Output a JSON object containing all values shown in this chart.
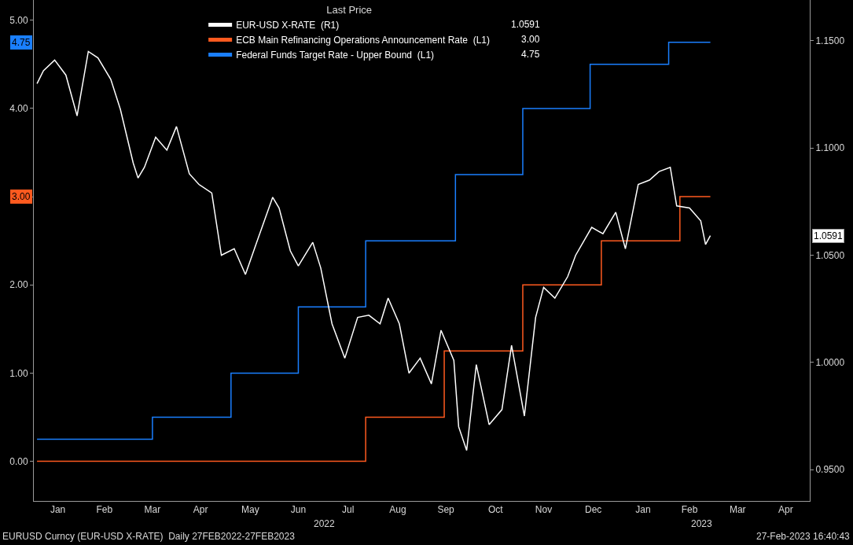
{
  "chart_data": {
    "type": "line",
    "legend_title": "Last Price",
    "legend": "top",
    "series": [
      {
        "name": "EUR-USD X-RATE  (R1)",
        "axis": "y2",
        "color": "#ffffff",
        "x": [
          "2022-01-03",
          "2022-01-07",
          "2022-01-14",
          "2022-01-21",
          "2022-01-28",
          "2022-02-04",
          "2022-02-10",
          "2022-02-18",
          "2022-02-24",
          "2022-03-04",
          "2022-03-07",
          "2022-03-11",
          "2022-03-18",
          "2022-03-25",
          "2022-03-31",
          "2022-04-08",
          "2022-04-14",
          "2022-04-22",
          "2022-04-28",
          "2022-05-06",
          "2022-05-13",
          "2022-05-20",
          "2022-05-30",
          "2022-06-03",
          "2022-06-10",
          "2022-06-15",
          "2022-06-24",
          "2022-06-29",
          "2022-07-06",
          "2022-07-14",
          "2022-07-22",
          "2022-07-29",
          "2022-08-05",
          "2022-08-10",
          "2022-08-17",
          "2022-08-23",
          "2022-08-30",
          "2022-09-06",
          "2022-09-12",
          "2022-09-20",
          "2022-09-23",
          "2022-09-28",
          "2022-10-04",
          "2022-10-12",
          "2022-10-20",
          "2022-10-26",
          "2022-11-03",
          "2022-11-10",
          "2022-11-15",
          "2022-11-22",
          "2022-11-30",
          "2022-12-05",
          "2022-12-15",
          "2022-12-22",
          "2022-12-30",
          "2023-01-05",
          "2023-01-13",
          "2023-01-20",
          "2023-01-26",
          "2023-02-02",
          "2023-02-06",
          "2023-02-14",
          "2023-02-21",
          "2023-02-24",
          "2023-02-27"
        ],
        "values": [
          1.13,
          1.136,
          1.141,
          1.134,
          1.115,
          1.145,
          1.142,
          1.132,
          1.118,
          1.093,
          1.086,
          1.091,
          1.105,
          1.099,
          1.11,
          1.088,
          1.083,
          1.079,
          1.05,
          1.053,
          1.041,
          1.056,
          1.077,
          1.072,
          1.052,
          1.045,
          1.056,
          1.044,
          1.018,
          1.002,
          1.021,
          1.022,
          1.018,
          1.03,
          1.018,
          0.995,
          1.002,
          0.99,
          1.015,
          1.001,
          0.97,
          0.959,
          0.999,
          0.971,
          0.978,
          1.008,
          0.975,
          1.021,
          1.035,
          1.03,
          1.04,
          1.05,
          1.063,
          1.06,
          1.07,
          1.053,
          1.083,
          1.085,
          1.089,
          1.091,
          1.073,
          1.072,
          1.066,
          1.055,
          1.0591
        ]
      },
      {
        "name": "ECB Main Refinancing Operations Announcement Rate  (L1)",
        "type": "step",
        "color": "#ff5a1f",
        "x": [
          "2022-01-03",
          "2022-07-27",
          "2022-09-14",
          "2022-11-02",
          "2022-12-21",
          "2023-02-08",
          "2023-02-27"
        ],
        "values": [
          0.0,
          0.5,
          1.25,
          2.0,
          2.5,
          3.0,
          3.0
        ]
      },
      {
        "name": "Federal Funds Target Rate - Upper Bound  (L1)",
        "type": "step",
        "color": "#1a7fff",
        "x": [
          "2022-01-03",
          "2022-03-16",
          "2022-05-04",
          "2022-06-15",
          "2022-07-27",
          "2022-09-21",
          "2022-11-02",
          "2022-12-14",
          "2023-02-01",
          "2023-02-27"
        ],
        "values": [
          0.25,
          0.5,
          1.0,
          1.75,
          2.5,
          3.25,
          4.0,
          4.5,
          4.75,
          4.75
        ]
      }
    ],
    "annotations": [
      "1.0591",
      "3.00",
      "4.75",
      "1.0591",
      "3.00",
      "4.75",
      "2022",
      "2023",
      "EURUSD Curncy (EUR-USD X-RATE)  Daily 27FEB2022-27FEB2023",
      "27-Feb-2023 16:40:43"
    ],
    "xlim": [
      "2022-01-01",
      "2023-04-30"
    ],
    "xticks": [
      {
        "value": "2022-01-16",
        "label": "Jan"
      },
      {
        "value": "2022-02-14",
        "label": "Feb"
      },
      {
        "value": "2022-03-16",
        "label": "Mar"
      },
      {
        "value": "2022-04-15",
        "label": "Apr"
      },
      {
        "value": "2022-05-16",
        "label": "May"
      },
      {
        "value": "2022-06-15",
        "label": "Jun"
      },
      {
        "value": "2022-07-16",
        "label": "Jul"
      },
      {
        "value": "2022-08-16",
        "label": "Aug"
      },
      {
        "value": "2022-09-15",
        "label": "Sep"
      },
      {
        "value": "2022-10-16",
        "label": "Oct"
      },
      {
        "value": "2022-11-15",
        "label": "Nov"
      },
      {
        "value": "2022-12-16",
        "label": "Dec"
      },
      {
        "value": "2023-01-16",
        "label": "Jan"
      },
      {
        "value": "2023-02-14",
        "label": "Feb"
      },
      {
        "value": "2023-03-16",
        "label": "Mar"
      },
      {
        "value": "2023-04-15",
        "label": "Apr"
      }
    ],
    "ylim": [
      -0.45,
      5.23
    ],
    "yticks": [
      {
        "value": 0,
        "label": "0.00"
      },
      {
        "value": 1,
        "label": "1.00"
      },
      {
        "value": 2,
        "label": "2.00"
      },
      {
        "value": 3,
        "label": null
      },
      {
        "value": 4,
        "label": "4.00"
      },
      {
        "value": 5,
        "label": "5.00"
      }
    ],
    "y2lim": [
      0.9354,
      1.169
    ],
    "y2ticks": [
      {
        "value": 0.95,
        "label": "0.9500"
      },
      {
        "value": 1.0,
        "label": "1.0000"
      },
      {
        "value": 1.05,
        "label": "1.0500"
      },
      {
        "value": 1.1,
        "label": "1.1000"
      },
      {
        "value": 1.15,
        "label": "1.1500"
      }
    ],
    "grid": false,
    "marker": "none"
  }
}
